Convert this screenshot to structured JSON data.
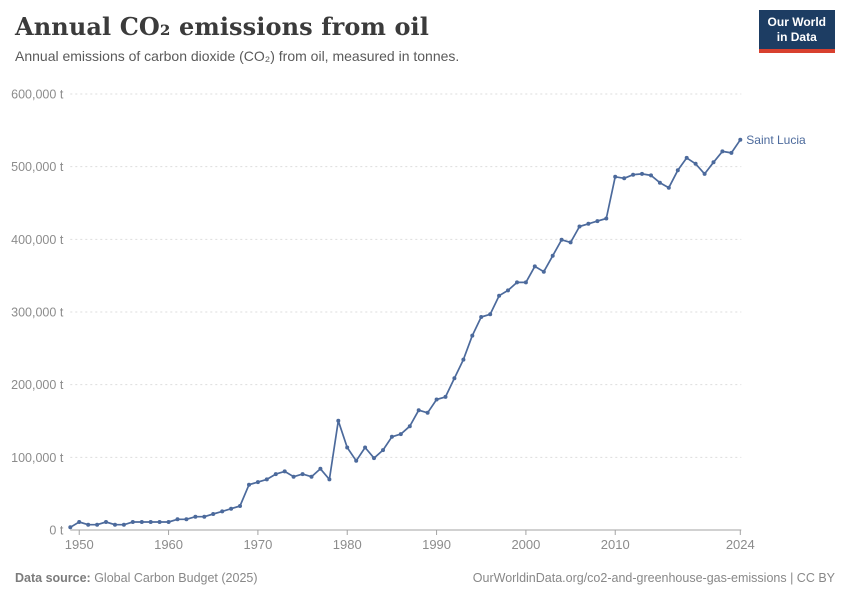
{
  "header": {
    "title": "Annual CO₂ emissions from oil",
    "subtitle": "Annual emissions of carbon dioxide (CO₂) from oil, measured in tonnes."
  },
  "logo": {
    "line1": "Our World",
    "line2": "in Data"
  },
  "chart_data": {
    "type": "line",
    "title": "Annual CO₂ emissions from oil",
    "subtitle": "Annual emissions of carbon dioxide (CO₂) from oil, measured in tonnes.",
    "unit": "t",
    "xlim": [
      1949,
      2024
    ],
    "ylim": [
      0,
      600000
    ],
    "grid": "horizontal-dashed",
    "legend_position": "line-end-label",
    "yticks": [
      {
        "value": 0,
        "label": "0 t"
      },
      {
        "value": 100000,
        "label": "100,000 t"
      },
      {
        "value": 200000,
        "label": "200,000 t"
      },
      {
        "value": 300000,
        "label": "300,000 t"
      },
      {
        "value": 400000,
        "label": "400,000 t"
      },
      {
        "value": 500000,
        "label": "500,000 t"
      },
      {
        "value": 600000,
        "label": "600,000 t"
      }
    ],
    "xticks": [
      {
        "value": 1950,
        "label": "1950"
      },
      {
        "value": 1960,
        "label": "1960"
      },
      {
        "value": 1970,
        "label": "1970"
      },
      {
        "value": 1980,
        "label": "1980"
      },
      {
        "value": 1990,
        "label": "1990"
      },
      {
        "value": 2000,
        "label": "2000"
      },
      {
        "value": 2010,
        "label": "2010"
      },
      {
        "value": 2024,
        "label": "2024"
      }
    ],
    "series": [
      {
        "name": "Saint Lucia",
        "color": "#4C6A9C",
        "years": [
          1949,
          1950,
          1951,
          1952,
          1953,
          1954,
          1955,
          1956,
          1957,
          1958,
          1959,
          1960,
          1961,
          1962,
          1963,
          1964,
          1965,
          1966,
          1967,
          1968,
          1969,
          1970,
          1971,
          1972,
          1973,
          1974,
          1975,
          1976,
          1977,
          1978,
          1979,
          1980,
          1981,
          1982,
          1983,
          1984,
          1985,
          1986,
          1987,
          1988,
          1989,
          1990,
          1991,
          1992,
          1993,
          1994,
          1995,
          1996,
          1997,
          1998,
          1999,
          2000,
          2001,
          2002,
          2003,
          2004,
          2005,
          2006,
          2007,
          2008,
          2009,
          2010,
          2011,
          2012,
          2013,
          2014,
          2015,
          2016,
          2017,
          2018,
          2019,
          2020,
          2021,
          2022,
          2023,
          2024
        ],
        "values": [
          3664,
          10992,
          7328,
          7328,
          10992,
          7328,
          7328,
          10992,
          10992,
          10992,
          10992,
          10992,
          14656,
          14656,
          18320,
          18320,
          21984,
          25648,
          29312,
          32976,
          62288,
          65952,
          69616,
          76944,
          80608,
          73280,
          76944,
          73280,
          84272,
          69616,
          150224,
          113584,
          95264,
          113584,
          98928,
          109920,
          128240,
          131904,
          142896,
          164880,
          161216,
          179536,
          183200,
          208848,
          234496,
          267472,
          293120,
          296784,
          322432,
          329760,
          340752,
          340752,
          362736,
          355408,
          377392,
          399376,
          395712,
          417696,
          421360,
          425024,
          428688,
          486000,
          484000,
          489000,
          490000,
          488000,
          478000,
          471000,
          495000,
          512000,
          504000,
          490000,
          506000,
          521000,
          519000,
          537000
        ]
      }
    ],
    "colors": {
      "line": "#4C6A9C",
      "end_label": "#4C6A9C",
      "grid": "#dddddd",
      "axis": "#a3a3a3",
      "tick_text": "#8c8c8c"
    }
  },
  "footer": {
    "source_label": "Data source:",
    "source_text": " Global Carbon Budget (2025)",
    "right_text": "OurWorldinData.org/co2-and-greenhouse-gas-emissions | CC BY"
  }
}
